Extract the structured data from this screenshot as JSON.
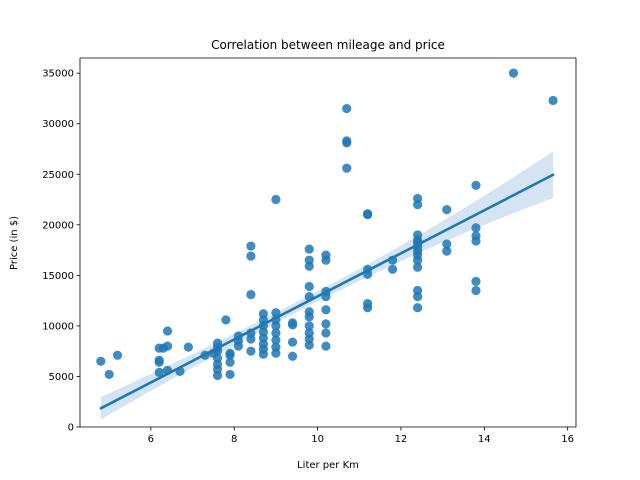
{
  "chart_data": {
    "type": "scatter",
    "title": "Correlation between mileage and price",
    "xlabel": "Liter per Km",
    "ylabel": "Price (in $)",
    "xlim": [
      4.3,
      16.2
    ],
    "ylim": [
      0,
      36500
    ],
    "xticks": [
      6,
      8,
      10,
      12,
      14,
      16
    ],
    "yticks": [
      0,
      5000,
      10000,
      15000,
      20000,
      25000,
      30000,
      35000
    ],
    "grid": false,
    "legend": "none",
    "colors": {
      "points": "#1f77b4",
      "regression": "#1f77b4",
      "band": "#c6dbef"
    },
    "regression": {
      "x": [
        4.8,
        15.65
      ],
      "y": [
        1850,
        24950
      ],
      "ci_lower": [
        800,
        22700
      ],
      "ci_upper": [
        3000,
        27300
      ]
    },
    "points": [
      [
        4.8,
        6500
      ],
      [
        5.0,
        5200
      ],
      [
        5.2,
        7100
      ],
      [
        6.2,
        7800
      ],
      [
        6.2,
        6600
      ],
      [
        6.2,
        6400
      ],
      [
        6.2,
        5400
      ],
      [
        6.3,
        7800
      ],
      [
        6.4,
        9500
      ],
      [
        6.4,
        8000
      ],
      [
        6.4,
        5600
      ],
      [
        6.7,
        5500
      ],
      [
        6.9,
        7900
      ],
      [
        7.3,
        7100
      ],
      [
        7.5,
        7300
      ],
      [
        7.6,
        6200
      ],
      [
        7.6,
        5700
      ],
      [
        7.6,
        5100
      ],
      [
        7.6,
        6800
      ],
      [
        7.6,
        7500
      ],
      [
        7.6,
        7900
      ],
      [
        7.6,
        8300
      ],
      [
        7.8,
        10600
      ],
      [
        7.9,
        7300
      ],
      [
        7.9,
        6400
      ],
      [
        7.9,
        7100
      ],
      [
        7.9,
        5200
      ],
      [
        8.1,
        9000
      ],
      [
        8.1,
        8500
      ],
      [
        8.1,
        8000
      ],
      [
        8.4,
        17900
      ],
      [
        8.4,
        16900
      ],
      [
        8.4,
        13100
      ],
      [
        8.4,
        8700
      ],
      [
        8.4,
        9300
      ],
      [
        8.4,
        7500
      ],
      [
        8.7,
        11200
      ],
      [
        8.7,
        10600
      ],
      [
        8.7,
        10000
      ],
      [
        8.7,
        9400
      ],
      [
        8.7,
        8800
      ],
      [
        8.7,
        8200
      ],
      [
        8.7,
        7700
      ],
      [
        8.7,
        7200
      ],
      [
        9.0,
        22500
      ],
      [
        9.0,
        11300
      ],
      [
        9.0,
        10600
      ],
      [
        9.0,
        10000
      ],
      [
        9.0,
        9300
      ],
      [
        9.0,
        8600
      ],
      [
        9.0,
        7900
      ],
      [
        9.0,
        7300
      ],
      [
        9.4,
        10300
      ],
      [
        9.4,
        10100
      ],
      [
        9.4,
        8400
      ],
      [
        9.4,
        7000
      ],
      [
        9.8,
        17600
      ],
      [
        9.8,
        16500
      ],
      [
        9.8,
        15900
      ],
      [
        9.8,
        13900
      ],
      [
        9.8,
        12900
      ],
      [
        9.8,
        11400
      ],
      [
        9.8,
        10900
      ],
      [
        9.8,
        10000
      ],
      [
        9.8,
        9300
      ],
      [
        9.8,
        8700
      ],
      [
        9.8,
        8100
      ],
      [
        10.2,
        17000
      ],
      [
        10.2,
        16500
      ],
      [
        10.2,
        13400
      ],
      [
        10.2,
        12900
      ],
      [
        10.2,
        11600
      ],
      [
        10.2,
        10200
      ],
      [
        10.2,
        9300
      ],
      [
        10.2,
        8000
      ],
      [
        10.7,
        31500
      ],
      [
        10.7,
        28300
      ],
      [
        10.7,
        28100
      ],
      [
        10.7,
        25600
      ],
      [
        11.2,
        21000
      ],
      [
        11.2,
        21100
      ],
      [
        11.2,
        15600
      ],
      [
        11.2,
        15100
      ],
      [
        11.2,
        12200
      ],
      [
        11.2,
        11800
      ],
      [
        11.8,
        16500
      ],
      [
        11.8,
        15600
      ],
      [
        12.4,
        22600
      ],
      [
        12.4,
        22000
      ],
      [
        12.4,
        19000
      ],
      [
        12.4,
        18500
      ],
      [
        12.4,
        18200
      ],
      [
        12.4,
        17800
      ],
      [
        12.4,
        17400
      ],
      [
        12.4,
        17000
      ],
      [
        12.4,
        16500
      ],
      [
        12.4,
        15800
      ],
      [
        12.4,
        13500
      ],
      [
        12.4,
        12900
      ],
      [
        12.4,
        11800
      ],
      [
        13.1,
        21500
      ],
      [
        13.1,
        18100
      ],
      [
        13.1,
        17400
      ],
      [
        13.8,
        23900
      ],
      [
        13.8,
        19700
      ],
      [
        13.8,
        18900
      ],
      [
        13.8,
        18400
      ],
      [
        13.8,
        14400
      ],
      [
        13.8,
        13500
      ],
      [
        14.7,
        35000
      ],
      [
        15.65,
        32300
      ]
    ]
  }
}
